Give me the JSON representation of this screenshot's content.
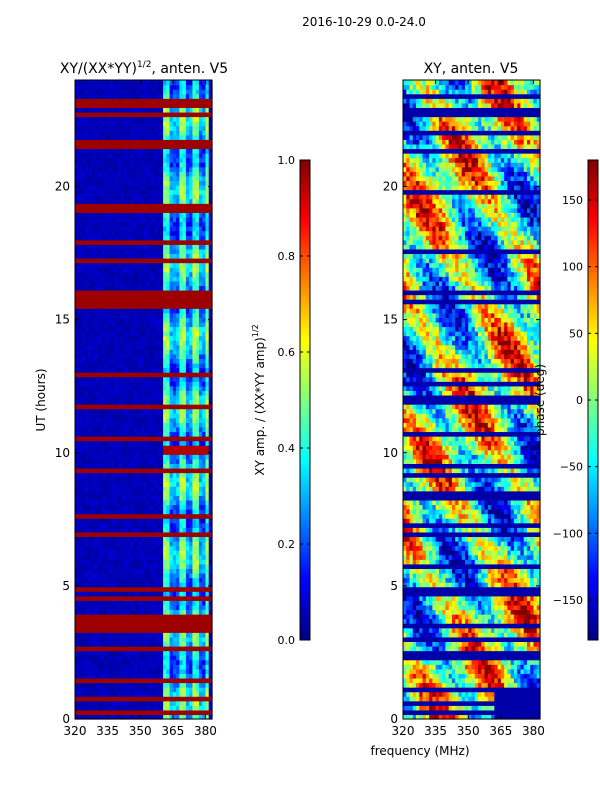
{
  "figure": {
    "suptitle": "2016-10-29 0.0-24.0"
  },
  "chart_data": [
    {
      "type": "heatmap",
      "title": "XY/(XX*YY)",
      "title_superscript": "1/2",
      "title_suffix": ", anten. V5",
      "xlabel": "",
      "ylabel": "UT (hours)",
      "xlim": [
        320,
        383
      ],
      "ylim": [
        0,
        24
      ],
      "xticks": [
        "320",
        "335",
        "350",
        "365",
        "380"
      ],
      "xtick_values": [
        320,
        335,
        350,
        365,
        380
      ],
      "yticks": [
        "0",
        "5",
        "10",
        "15",
        "20"
      ],
      "ytick_values": [
        0,
        5,
        10,
        15,
        20
      ],
      "colorbar": {
        "label": "XY amp. / (XX*YY amp)",
        "label_superscript": "1/2",
        "range": [
          0.0,
          1.0
        ],
        "ticks": [
          "0.0",
          "0.2",
          "0.4",
          "0.6",
          "0.8",
          "1.0"
        ],
        "tick_values": [
          0.0,
          0.2,
          0.4,
          0.6,
          0.8,
          1.0
        ]
      },
      "colormap": "jet",
      "saturated_hours": [
        0.2,
        0.8,
        1.5,
        2.6,
        3.3,
        3.6,
        3.8,
        4.5,
        4.9,
        6.9,
        7.0,
        7.6,
        9.4,
        10.6,
        11.8,
        12.9,
        13.0,
        15.6,
        15.8,
        16.0,
        17.3,
        17.9,
        19.2,
        21.5,
        21.6,
        22.7,
        23.1,
        23.3
      ],
      "active_band_mhz": [
        361,
        381
      ],
      "bright_patch": {
        "freq": [
          361,
          381
        ],
        "hours": [
          9.9,
          10.3
        ],
        "value": 0.95
      }
    },
    {
      "type": "heatmap",
      "title": "XY, anten. V5",
      "xlabel": "frequency (MHz)",
      "ylabel": "",
      "xlim": [
        320,
        383
      ],
      "ylim": [
        0,
        24
      ],
      "xticks": [
        "320",
        "335",
        "350",
        "365",
        "380"
      ],
      "xtick_values": [
        320,
        335,
        350,
        365,
        380
      ],
      "yticks": [
        "0",
        "5",
        "10",
        "15",
        "20"
      ],
      "ytick_values": [
        0,
        5,
        10,
        15,
        20
      ],
      "colorbar": {
        "label": "phase (deg)",
        "range": [
          -180,
          180
        ],
        "ticks": [
          "−150",
          "−100",
          "−50",
          "0",
          "50",
          "100",
          "150"
        ],
        "tick_values": [
          -150,
          -100,
          -50,
          0,
          50,
          100,
          150
        ]
      },
      "colormap": "jet",
      "dark_hours": [
        0.3,
        0.6,
        1.1,
        2.4,
        3.0,
        3.5,
        4.8,
        5.7,
        6.9,
        7.3,
        8.4,
        9.2,
        9.5,
        10.7,
        12.0,
        12.6,
        13.1,
        15.7,
        16.0,
        17.5,
        19.8,
        21.4,
        22.1,
        22.8,
        23.4
      ]
    }
  ]
}
